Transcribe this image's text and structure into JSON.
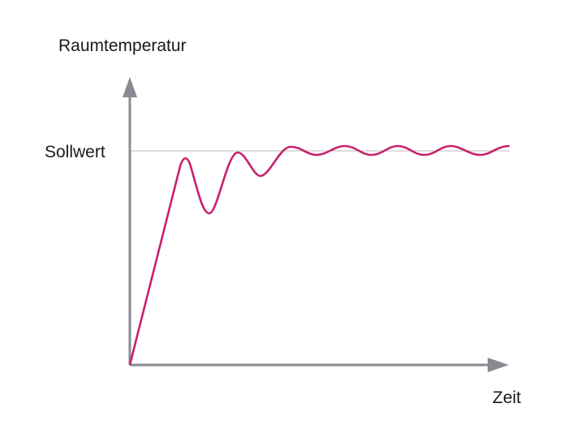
{
  "y_axis_label": "Raumtemperatur",
  "setpoint_label": "Sollwert",
  "x_axis_label": "Zeit"
}
